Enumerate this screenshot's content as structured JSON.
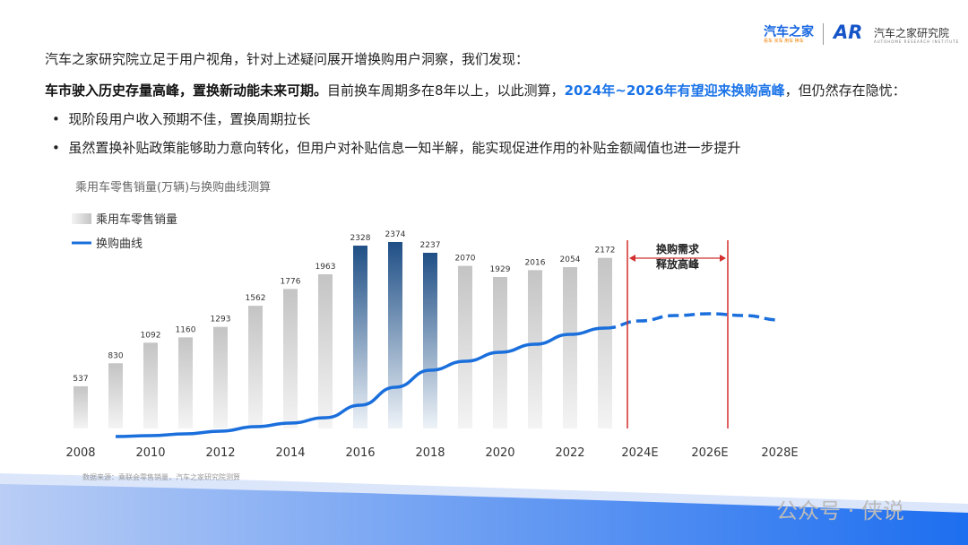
{
  "header": {
    "logo_main": "汽车之家",
    "logo_sub": "看车 买车 用车 换车",
    "logo_ar": "AR",
    "logo_institute": "汽车之家研究院",
    "logo_institute_en": "AUTOHOME RESEARCH INSTITUTE"
  },
  "intro": "汽车之家研究院立足于用户视角，针对上述疑问展开增换购用户洞察，我们发现：",
  "finding": {
    "bold": "车市驶入历史存量高峰，置换新动能未来可期。",
    "normal1": "目前换车周期多在8年以上，以此测算，",
    "highlight": "2024年~2026年有望迎来换购高峰",
    "normal2": "，但仍然存在隐忧："
  },
  "bullets": [
    "现阶段用户收入预期不佳，置换周期拉长",
    "虽然置换补贴政策能够助力意向转化，但用户对补贴信息一知半解，能实现促进作用的补贴金额阈值也进一步提升"
  ],
  "source": "数据来源：乘联会零售销量，汽车之家研究院测算",
  "watermark": "公众号 · 侠说",
  "chart_data": {
    "type": "bar+line",
    "title": "乘用车零售销量(万辆)与换购曲线测算",
    "legend": [
      "乘用车零售销量",
      "换购曲线"
    ],
    "legend_position": "top-left",
    "x_ticks": [
      "2008",
      "2010",
      "2012",
      "2014",
      "2016",
      "2018",
      "2020",
      "2022",
      "2024E",
      "2026E",
      "2028E"
    ],
    "bar_years": [
      2008,
      2009,
      2010,
      2011,
      2012,
      2013,
      2014,
      2015,
      2016,
      2017,
      2018,
      2019,
      2020,
      2021,
      2022,
      2023
    ],
    "bar_values": [
      537,
      830,
      1092,
      1160,
      1293,
      1562,
      1776,
      1963,
      2328,
      2374,
      2237,
      2070,
      1929,
      2016,
      2054,
      2172
    ],
    "highlight_years": [
      2016,
      2017,
      2018
    ],
    "curve_years": [
      2009,
      2010,
      2011,
      2012,
      2013,
      2014,
      2015,
      2016,
      2017,
      2018,
      2019,
      2020,
      2021,
      2022,
      2023,
      2024,
      2025,
      2026,
      2027,
      2028
    ],
    "curve_index": [
      0,
      1,
      3,
      6,
      11,
      15,
      21,
      35,
      55,
      74,
      84,
      94,
      103,
      114,
      121,
      129,
      135,
      137,
      135,
      130
    ],
    "curve_forecast_from": 2023,
    "annotation": {
      "text1": "换购需求",
      "text2": "释放高峰",
      "from": "2024",
      "to": "2026.5"
    },
    "colors": {
      "bar": "#c8c8c8",
      "bar_highlight": "#1f4f86",
      "curve": "#1a6fdc",
      "annotation": "#d32f2f"
    }
  }
}
